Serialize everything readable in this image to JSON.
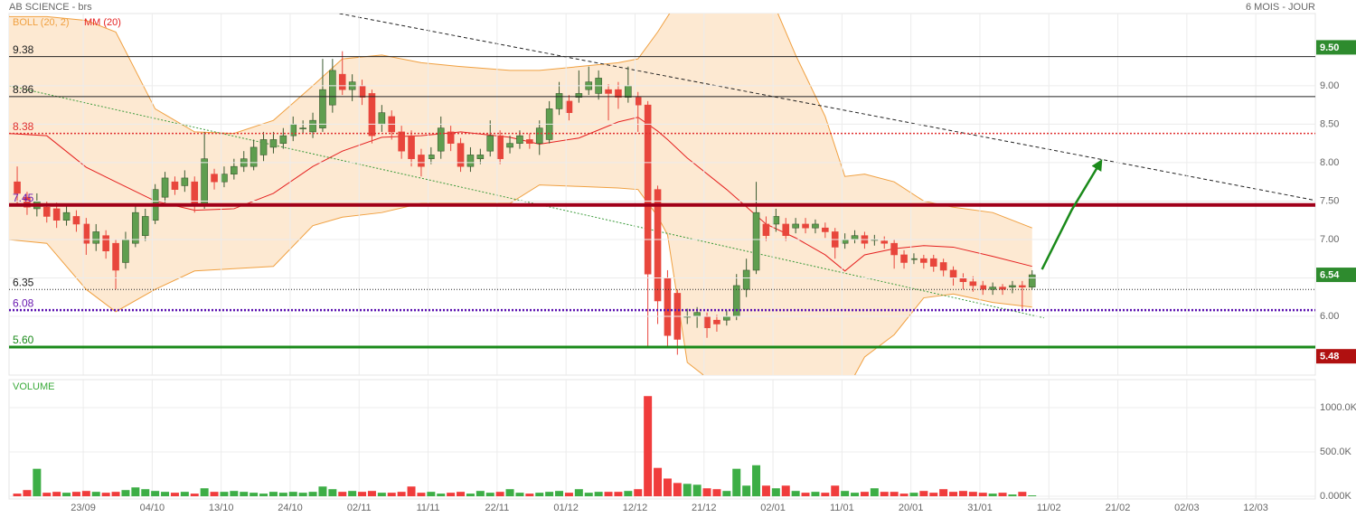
{
  "chart_data": [
    {
      "type": "candlestick",
      "title": "AB SCIENCE - brs",
      "subtitle": "6 MOIS - JOUR",
      "up_color": "#5f9e4f",
      "down_color": "#e8463c",
      "grid": true,
      "xlim": [
        -0.83,
        131.74
      ],
      "ylim": [
        5.235,
        9.94
      ],
      "yticks": [
        {
          "value": 6,
          "label": "6.00"
        },
        {
          "value": 6.5,
          "label": "6.50"
        },
        {
          "value": 7,
          "label": "7.00"
        },
        {
          "value": 7.5,
          "label": "7.50"
        },
        {
          "value": 8,
          "label": "8.00"
        },
        {
          "value": 8.5,
          "label": "8.50"
        },
        {
          "value": 9,
          "label": "9.00"
        }
      ],
      "xticks": [
        {
          "value": 6.7,
          "label": "23/09"
        },
        {
          "value": 13.7,
          "label": "04/10"
        },
        {
          "value": 20.7,
          "label": "13/10"
        },
        {
          "value": 27.7,
          "label": "24/10"
        },
        {
          "value": 34.7,
          "label": "02/11"
        },
        {
          "value": 41.7,
          "label": "11/11"
        },
        {
          "value": 48.7,
          "label": "22/11"
        },
        {
          "value": 55.7,
          "label": "01/12"
        },
        {
          "value": 62.7,
          "label": "12/12"
        },
        {
          "value": 69.7,
          "label": "21/12"
        },
        {
          "value": 76.7,
          "label": "02/01"
        },
        {
          "value": 83.7,
          "label": "11/01"
        },
        {
          "value": 90.7,
          "label": "20/01"
        },
        {
          "value": 97.7,
          "label": "31/01"
        },
        {
          "value": 104.7,
          "label": "11/02"
        },
        {
          "value": 111.7,
          "label": "21/02"
        },
        {
          "value": 118.7,
          "label": "02/03"
        },
        {
          "value": 125.7,
          "label": "12/03"
        }
      ],
      "open": [
        7.75,
        7.55,
        7.4,
        7.42,
        7.4,
        7.25,
        7.3,
        7.2,
        6.95,
        7.05,
        6.95,
        6.7,
        6.95,
        7.05,
        7.25,
        7.55,
        7.75,
        7.7,
        7.75,
        7.45,
        7.85,
        7.75,
        7.85,
        7.95,
        7.95,
        8.1,
        8.2,
        8.25,
        8.35,
        8.45,
        8.4,
        8.45,
        8.75,
        9.15,
        8.95,
        9.0,
        8.9,
        8.5,
        8.6,
        8.4,
        8.35,
        8.1,
        8.05,
        8.15,
        8.4,
        8.25,
        7.95,
        8.05,
        8.15,
        8.35,
        8.2,
        8.25,
        8.3,
        8.25,
        8.3,
        8.7,
        8.8,
        8.85,
        8.95,
        8.9,
        8.95,
        8.95,
        8.85,
        8.85,
        8.75,
        7.65,
        6.5,
        6.3,
        6.0,
        6.0,
        6.0,
        5.95,
        5.95,
        6.0,
        6.35,
        6.6,
        7.2,
        7.2,
        7.2,
        7.15,
        7.2,
        7.15,
        7.15,
        7.1,
        6.95,
        7.0,
        7.05,
        7.0,
        6.98,
        6.95,
        6.8,
        6.75,
        6.75,
        6.75,
        6.7,
        6.6,
        6.5,
        6.45,
        6.4,
        6.35,
        6.38,
        6.38,
        6.4,
        6.38
      ],
      "high": [
        7.95,
        7.62,
        7.6,
        7.5,
        7.48,
        7.45,
        7.38,
        7.28,
        7.2,
        7.12,
        7.0,
        7.1,
        7.45,
        7.4,
        7.72,
        7.88,
        7.82,
        7.9,
        7.82,
        8.4,
        7.92,
        7.95,
        8.05,
        8.15,
        8.3,
        8.4,
        8.4,
        8.45,
        8.6,
        8.55,
        8.65,
        9.35,
        9.35,
        9.45,
        9.15,
        9.08,
        8.95,
        8.75,
        8.68,
        8.48,
        8.42,
        8.18,
        8.2,
        8.6,
        8.48,
        8.32,
        8.2,
        8.18,
        8.55,
        8.42,
        8.35,
        8.42,
        8.38,
        8.55,
        8.8,
        9.05,
        8.88,
        9.2,
        9.25,
        9.2,
        9.02,
        9.05,
        9.25,
        8.92,
        8.8,
        7.7,
        6.6,
        6.35,
        6.1,
        6.12,
        6.05,
        6.02,
        6.08,
        6.55,
        6.75,
        7.75,
        7.3,
        7.4,
        7.28,
        7.28,
        7.28,
        7.26,
        7.22,
        7.15,
        7.08,
        7.12,
        7.1,
        7.06,
        7.04,
        7.0,
        6.86,
        6.82,
        6.8,
        6.8,
        6.75,
        6.65,
        6.56,
        6.52,
        6.46,
        6.44,
        6.42,
        6.46,
        6.46,
        6.6
      ],
      "low": [
        7.45,
        7.32,
        7.3,
        7.22,
        7.15,
        7.18,
        7.1,
        6.8,
        6.85,
        6.75,
        6.35,
        6.62,
        6.9,
        6.98,
        7.2,
        7.48,
        7.58,
        7.62,
        7.35,
        7.4,
        7.65,
        7.68,
        7.78,
        7.88,
        7.9,
        8.02,
        8.12,
        8.18,
        8.28,
        8.38,
        8.32,
        8.4,
        8.65,
        8.88,
        8.8,
        8.75,
        8.25,
        8.4,
        8.3,
        8.05,
        7.95,
        7.82,
        7.98,
        8.05,
        8.15,
        7.88,
        7.88,
        7.98,
        8.08,
        7.98,
        8.12,
        8.18,
        8.18,
        8.1,
        8.25,
        8.62,
        8.55,
        8.78,
        8.88,
        8.82,
        8.55,
        8.7,
        8.78,
        8.4,
        5.6,
        5.9,
        5.6,
        5.5,
        5.9,
        5.85,
        5.72,
        5.8,
        5.88,
        5.95,
        6.25,
        6.55,
        6.98,
        7.1,
        6.98,
        7.08,
        7.08,
        7.08,
        7.02,
        6.75,
        6.88,
        6.95,
        6.88,
        6.92,
        6.88,
        6.62,
        6.62,
        6.68,
        6.62,
        6.58,
        6.52,
        6.4,
        6.35,
        6.32,
        6.28,
        6.28,
        6.28,
        6.3,
        6.1,
        6.35
      ],
      "close": [
        7.6,
        7.42,
        7.5,
        7.3,
        7.25,
        7.35,
        7.2,
        6.95,
        7.1,
        6.85,
        6.6,
        7.0,
        7.35,
        7.3,
        7.65,
        7.8,
        7.65,
        7.8,
        7.45,
        8.05,
        7.75,
        7.85,
        7.95,
        8.05,
        8.2,
        8.3,
        8.3,
        8.35,
        8.5,
        8.45,
        8.55,
        8.95,
        9.2,
        8.95,
        9.05,
        8.85,
        8.35,
        8.65,
        8.4,
        8.15,
        8.05,
        7.95,
        8.1,
        8.45,
        8.25,
        7.95,
        8.1,
        8.1,
        8.35,
        8.05,
        8.25,
        8.35,
        8.25,
        8.45,
        8.7,
        8.9,
        8.65,
        8.9,
        9.05,
        9.1,
        8.9,
        8.85,
        9.0,
        8.75,
        6.55,
        6.2,
        5.75,
        5.7,
        6.0,
        6.05,
        5.85,
        5.9,
        6.0,
        6.4,
        6.6,
        7.35,
        7.05,
        7.3,
        7.05,
        7.2,
        7.15,
        7.2,
        7.1,
        6.9,
        7.0,
        7.05,
        6.95,
        7.0,
        6.95,
        6.8,
        6.7,
        6.75,
        6.7,
        6.65,
        6.6,
        6.5,
        6.45,
        6.4,
        6.35,
        6.38,
        6.35,
        6.4,
        6.38,
        6.54
      ],
      "bollinger": {
        "name": "BOLL (20, 2)",
        "color": "#f0a040",
        "fill": "#fde9d2",
        "x": [
          -1,
          3,
          7,
          10,
          14,
          18,
          22,
          26,
          30,
          33,
          37,
          41,
          45,
          50,
          53,
          57,
          61,
          63,
          65,
          66,
          68,
          72,
          76,
          79,
          82,
          84,
          86,
          89,
          92,
          95,
          99,
          103
        ],
        "upper": [
          9.9,
          9.9,
          9.85,
          9.7,
          8.7,
          8.4,
          8.38,
          8.55,
          9.0,
          9.35,
          9.4,
          9.3,
          9.25,
          9.2,
          9.2,
          9.25,
          9.3,
          9.35,
          9.7,
          9.9,
          10.3,
          10.3,
          10.3,
          9.4,
          8.6,
          7.82,
          7.85,
          7.75,
          7.5,
          7.42,
          7.35,
          7.15
        ],
        "lower": [
          7.0,
          6.95,
          6.35,
          6.06,
          6.35,
          6.59,
          6.62,
          6.65,
          7.18,
          7.29,
          7.35,
          7.47,
          7.47,
          7.47,
          7.71,
          7.69,
          7.67,
          7.65,
          7.3,
          7.06,
          5.4,
          5.0,
          5.0,
          5.0,
          5.0,
          5.0,
          5.47,
          5.76,
          6.24,
          6.29,
          6.18,
          6.12
        ]
      },
      "moving_average": {
        "name": "MM (20)",
        "color": "#e52020",
        "x": [
          -1,
          3,
          7,
          10,
          14,
          18,
          22,
          26,
          30,
          33,
          37,
          41,
          45,
          50,
          53,
          57,
          61,
          63,
          65,
          66,
          68,
          72,
          76,
          79,
          82,
          84,
          86,
          89,
          92,
          95,
          99,
          103
        ],
        "values": [
          8.38,
          8.35,
          7.94,
          7.75,
          7.5,
          7.38,
          7.4,
          7.6,
          7.95,
          8.15,
          8.33,
          8.35,
          8.4,
          8.33,
          8.24,
          8.32,
          8.53,
          8.59,
          8.41,
          8.3,
          8.06,
          7.65,
          7.2,
          7.02,
          6.8,
          6.59,
          6.8,
          6.88,
          6.92,
          6.9,
          6.78,
          6.65
        ]
      },
      "levels": [
        {
          "value": 9.38,
          "label": "9.38",
          "color": "#222",
          "width": 1,
          "dash": "none",
          "label_color": "#222"
        },
        {
          "value": 8.86,
          "label": "8.86",
          "color": "#222",
          "width": 1,
          "dash": "none",
          "label_color": "#222"
        },
        {
          "value": 8.38,
          "label": "8.38",
          "color": "#e03030",
          "width": 1.5,
          "dash": "2 2",
          "label_color": "#e03030"
        },
        {
          "value": 7.45,
          "label": "7.45",
          "color": "#a0001a",
          "width": 4,
          "dash": "none",
          "label_color": "#6a1ab0"
        },
        {
          "value": 6.35,
          "label": "6.35",
          "color": "#222",
          "width": 1,
          "dash": "1 2",
          "label_color": "#222"
        },
        {
          "value": 6.08,
          "label": "6.08",
          "color": "#5a10b0",
          "width": 2.5,
          "dash": "2 2",
          "label_color": "#6a1ab0"
        },
        {
          "value": 5.6,
          "label": "5.60",
          "color": "#1a8a1a",
          "width": 3,
          "dash": "none",
          "label_color": "#1a8a1a"
        }
      ],
      "trendlines": [
        {
          "x": [
            32.7,
            131.7
          ],
          "values": [
            9.94,
            7.51
          ],
          "color": "#222",
          "dash": "4 3"
        },
        {
          "x": [
            -0.8,
            104.2
          ],
          "values": [
            9.0,
            5.98
          ],
          "color": "#3a9a3a",
          "dash": "2 2"
        }
      ],
      "arrow": {
        "x": [
          104,
          107,
          110
        ],
        "values": [
          6.61,
          7.38,
          8.02
        ],
        "color": "#1a8a1a"
      },
      "tags": [
        {
          "value": 9.5,
          "label": "9.50",
          "color": "#2e8b2e"
        },
        {
          "value": 6.54,
          "label": "6.54",
          "color": "#2e8b2e"
        },
        {
          "value": 5.48,
          "label": "5.48",
          "color": "#b01010"
        }
      ]
    },
    {
      "type": "bar",
      "title": "VOLUME",
      "title_color": "#3aaa3a",
      "up_color": "#3dae46",
      "down_color": "#f03c3c",
      "ylim": [
        -30,
        1316
      ],
      "yticks": [
        {
          "value": 0,
          "label": "0.000K"
        },
        {
          "value": 500,
          "label": "500.0K"
        },
        {
          "value": 1000,
          "label": "1000.0K"
        }
      ],
      "values": [
        30,
        70,
        310,
        40,
        50,
        40,
        50,
        60,
        50,
        40,
        50,
        70,
        100,
        80,
        60,
        50,
        40,
        50,
        30,
        90,
        50,
        50,
        60,
        50,
        40,
        30,
        50,
        40,
        50,
        40,
        50,
        110,
        80,
        50,
        60,
        50,
        60,
        40,
        40,
        50,
        110,
        40,
        50,
        30,
        40,
        50,
        30,
        60,
        40,
        50,
        80,
        40,
        30,
        40,
        50,
        60,
        40,
        80,
        40,
        50,
        50,
        50,
        60,
        80,
        1130,
        320,
        200,
        150,
        140,
        130,
        90,
        80,
        60,
        310,
        120,
        350,
        120,
        90,
        120,
        60,
        40,
        50,
        40,
        120,
        60,
        40,
        50,
        90,
        50,
        50,
        30,
        40,
        60,
        40,
        80,
        50,
        60,
        50,
        40,
        30,
        40,
        20,
        50,
        10
      ]
    }
  ]
}
